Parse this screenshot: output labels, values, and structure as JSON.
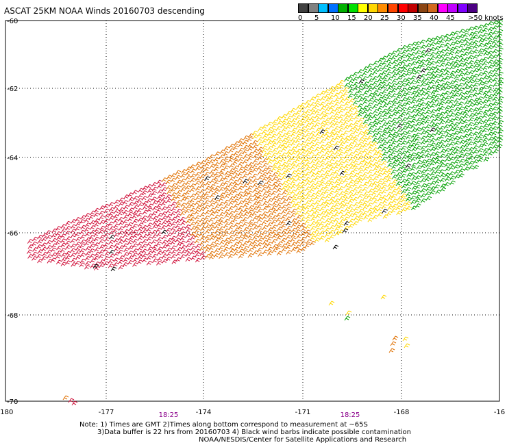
{
  "title": "ASCAT 25KM NOAA Winds 20160703 descending",
  "legend": {
    "colors": [
      "#404040",
      "#808080",
      "#00bfff",
      "#0070ff",
      "#00b000",
      "#00e000",
      "#ffff00",
      "#ffd700",
      "#ff8c00",
      "#ff4500",
      "#ff0000",
      "#c00000",
      "#8b4513",
      "#d2691e",
      "#ff00ff",
      "#c000ff",
      "#8000ff",
      "#4b0082"
    ],
    "labels": [
      "0",
      "5",
      "10",
      "15",
      "20",
      "25",
      "30",
      "35",
      "40",
      "45",
      ">50 knots"
    ]
  },
  "axes": {
    "x_ticks": [
      "-180",
      "-177",
      "-174",
      "-171",
      "-168",
      "-16"
    ],
    "y_ticks": [
      "-60",
      "-62",
      "-64",
      "-66",
      "-68",
      "-70"
    ],
    "times": [
      "18:25",
      "18:25"
    ]
  },
  "notes": {
    "line1": "Note: 1) Times are GMT 2)Times along bottom correspond to measurement at ~65S",
    "line2": "3)Data buffer is 22 hrs from 20160703 4) Black wind barbs indicate possible contamination",
    "line3": "NOAA/NESDIS/Center for Satellite Applications and Research"
  },
  "wind_colors": {
    "green": "#00a000",
    "yellow": "#ffd700",
    "orange": "#e07000",
    "red": "#d0103a",
    "black": "#000000"
  }
}
